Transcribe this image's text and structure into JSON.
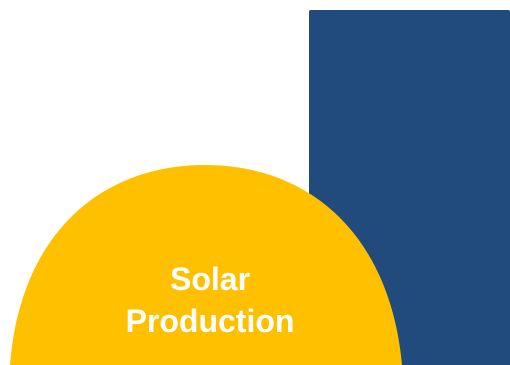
{
  "label": {
    "line1": "Solar",
    "line2": "Production"
  },
  "colors": {
    "background": "#ffffff",
    "blue_panel": "#214b7d",
    "sun": "#ffc000",
    "text": "#ffffff"
  }
}
